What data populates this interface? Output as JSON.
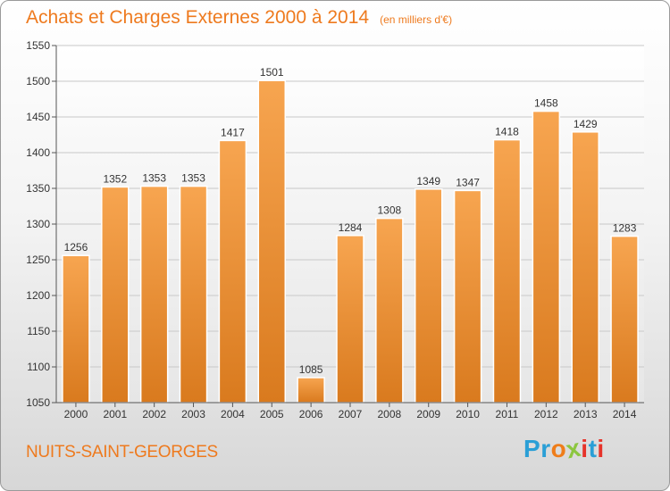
{
  "title": "Achats et Charges Externes 2000 à 2014",
  "subtitle": "(en milliers d'€)",
  "city": "NUITS-SAINT-GEORGES",
  "logo": {
    "letters": [
      "P",
      "r",
      "o",
      "x",
      "i",
      "t",
      "i"
    ],
    "colors": [
      "#2a9fd6",
      "#2a9fd6",
      "#ef7d1a",
      "#8cc63f",
      "#e6332a",
      "#2a9fd6",
      "#e6332a"
    ]
  },
  "colors": {
    "accent": "#ee7a1e",
    "bar_light": "#f7a550",
    "bar_dark": "#d97a1e"
  },
  "chart_data": {
    "type": "bar",
    "categories": [
      "2000",
      "2001",
      "2002",
      "2003",
      "2004",
      "2005",
      "2006",
      "2007",
      "2008",
      "2009",
      "2010",
      "2011",
      "2012",
      "2013",
      "2014"
    ],
    "values": [
      1256,
      1352,
      1353,
      1353,
      1417,
      1501,
      1085,
      1284,
      1308,
      1349,
      1347,
      1418,
      1458,
      1429,
      1283
    ],
    "yticks": [
      1050,
      1100,
      1150,
      1200,
      1250,
      1300,
      1350,
      1400,
      1450,
      1500,
      1550
    ],
    "ylim": [
      1050,
      1550
    ],
    "grid": true,
    "legend": "none"
  }
}
